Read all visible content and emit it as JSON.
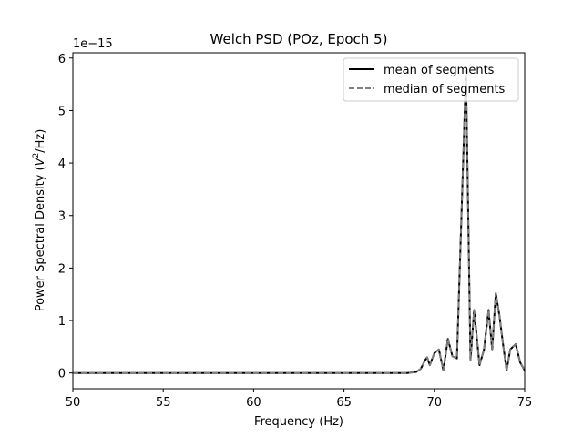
{
  "chart_data": {
    "type": "line",
    "title": "Welch PSD (POz, Epoch 5)",
    "xlabel": "Frequency (Hz)",
    "ylabel_prefix": "Power Spectral Density (",
    "ylabel_var": "V",
    "ylabel_exp": "2",
    "ylabel_suffix": "/Hz)",
    "offset_text": "1e−15",
    "xlim": [
      50,
      75
    ],
    "ylim": [
      -0.3,
      6.1
    ],
    "xticks": [
      50,
      55,
      60,
      65,
      70,
      75
    ],
    "yticks": [
      0,
      1,
      2,
      3,
      4,
      5,
      6
    ],
    "grid": false,
    "legend_position": "upper right",
    "series": [
      {
        "name": "mean of segments",
        "color": "#000000",
        "style": "solid",
        "x": [
          50,
          55,
          60,
          65,
          68.5,
          69.0,
          69.25,
          69.5,
          69.6,
          69.75,
          70.0,
          70.25,
          70.5,
          70.75,
          71.0,
          71.25,
          71.5,
          71.75,
          72.0,
          72.2,
          72.5,
          72.75,
          73.0,
          73.2,
          73.4,
          73.6,
          73.8,
          74.0,
          74.2,
          74.5,
          74.75,
          75.0
        ],
        "values": [
          0,
          0,
          0,
          0,
          0,
          0.02,
          0.08,
          0.25,
          0.3,
          0.15,
          0.38,
          0.45,
          0.05,
          0.65,
          0.32,
          0.28,
          3.0,
          5.75,
          0.25,
          1.2,
          0.15,
          0.45,
          1.2,
          0.45,
          1.52,
          1.1,
          0.55,
          0.05,
          0.45,
          0.55,
          0.2,
          0.05
        ]
      },
      {
        "name": "median of segments",
        "color": "#808080",
        "style": "dashed",
        "x": [
          50,
          55,
          60,
          65,
          68.5,
          69.0,
          69.25,
          69.5,
          69.6,
          69.75,
          70.0,
          70.25,
          70.5,
          70.75,
          71.0,
          71.25,
          71.5,
          71.75,
          72.0,
          72.2,
          72.5,
          72.75,
          73.0,
          73.2,
          73.4,
          73.6,
          73.8,
          74.0,
          74.2,
          74.5,
          74.75,
          75.0
        ],
        "values": [
          0,
          0,
          0,
          0,
          0,
          0.02,
          0.08,
          0.25,
          0.3,
          0.15,
          0.38,
          0.45,
          0.05,
          0.65,
          0.32,
          0.28,
          3.0,
          5.75,
          0.25,
          1.2,
          0.15,
          0.45,
          1.2,
          0.45,
          1.52,
          1.1,
          0.55,
          0.05,
          0.45,
          0.55,
          0.2,
          0.05
        ]
      }
    ]
  }
}
